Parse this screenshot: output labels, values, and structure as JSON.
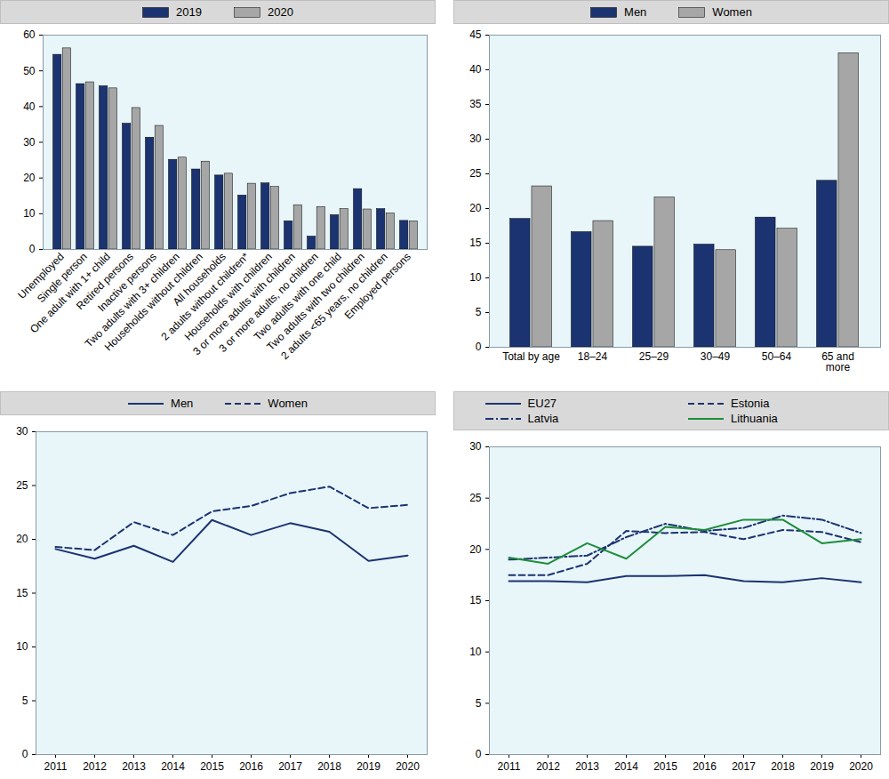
{
  "chart_data": [
    {
      "type": "bar",
      "categories": [
        "Unemployed",
        "Single person",
        "One adult with 1+ child",
        "Retired persons",
        "Inactive persons",
        "Two adults with 3+ children",
        "Households without children",
        "All households",
        "2 adults without children*",
        "Households with children",
        "3 or more adults with children",
        "3 or more adults, no children",
        "Two adults with one child",
        "Two adults with two children",
        "2 adults <65 years, no children",
        "Employed persons"
      ],
      "series": [
        {
          "name": "2019",
          "color": "#1b3370",
          "values": [
            54.5,
            46.3,
            45.7,
            35.2,
            31.3,
            25.1,
            22.4,
            20.7,
            15.1,
            18.5,
            7.9,
            3.6,
            9.6,
            16.9,
            11.3,
            8.0
          ]
        },
        {
          "name": "2020",
          "color": "#a6a6a6",
          "values": [
            56.3,
            46.8,
            45.1,
            39.6,
            34.6,
            25.7,
            24.6,
            21.2,
            18.4,
            17.5,
            12.4,
            11.9,
            11.3,
            11.2,
            10.1,
            7.9
          ]
        }
      ],
      "ylim": [
        0,
        60
      ],
      "yticks": [
        0,
        10,
        20,
        30,
        40,
        50,
        60
      ],
      "grid": false,
      "legend": "top"
    },
    {
      "type": "bar",
      "categories": [
        "Total by age",
        "18–24",
        "25–29",
        "30–49",
        "50–64",
        "65 and more"
      ],
      "series": [
        {
          "name": "Men",
          "color": "#1b3370",
          "values": [
            18.5,
            16.6,
            14.5,
            14.8,
            18.7,
            24.0
          ]
        },
        {
          "name": "Women",
          "color": "#a6a6a6",
          "values": [
            23.2,
            18.2,
            21.6,
            14.0,
            17.1,
            42.4
          ]
        }
      ],
      "ylim": [
        0,
        45
      ],
      "yticks": [
        0,
        5,
        10,
        15,
        20,
        25,
        30,
        35,
        40,
        45
      ],
      "grid": false,
      "legend": "top"
    },
    {
      "type": "line",
      "x": [
        2011,
        2012,
        2013,
        2014,
        2015,
        2016,
        2017,
        2018,
        2019,
        2020
      ],
      "series": [
        {
          "name": "Men",
          "color": "#1b3370",
          "line_style": "solid",
          "values": [
            19.1,
            18.2,
            19.4,
            17.9,
            21.8,
            20.4,
            21.5,
            20.7,
            18.0,
            18.5
          ]
        },
        {
          "name": "Women",
          "color": "#1b3370",
          "line_style": "dashed",
          "values": [
            19.3,
            19.0,
            21.6,
            20.4,
            22.6,
            23.1,
            24.3,
            24.9,
            22.9,
            23.2
          ]
        }
      ],
      "xlim": [
        2010.5,
        2020.5
      ],
      "xticks": [
        2011,
        2012,
        2013,
        2014,
        2015,
        2016,
        2017,
        2018,
        2019,
        2020
      ],
      "ylim": [
        0,
        30
      ],
      "yticks": [
        0,
        5,
        10,
        15,
        20,
        25,
        30
      ],
      "grid": false,
      "legend": "top"
    },
    {
      "type": "line",
      "x": [
        2011,
        2012,
        2013,
        2014,
        2015,
        2016,
        2017,
        2018,
        2019,
        2020
      ],
      "series": [
        {
          "name": "EU27",
          "color": "#1b3370",
          "line_style": "solid",
          "values": [
            16.9,
            16.9,
            16.8,
            17.4,
            17.4,
            17.5,
            16.9,
            16.8,
            17.2,
            16.8
          ]
        },
        {
          "name": "Estonia",
          "color": "#1b3370",
          "line_style": "dashed",
          "values": [
            17.5,
            17.5,
            18.6,
            21.8,
            21.6,
            21.7,
            21.0,
            21.9,
            21.7,
            20.7
          ]
        },
        {
          "name": "Latvia",
          "color": "#1b3370",
          "line_style": "dashdot",
          "values": [
            19.0,
            19.2,
            19.4,
            21.2,
            22.5,
            21.8,
            22.1,
            23.3,
            22.9,
            21.6
          ]
        },
        {
          "name": "Lithuania",
          "color": "#1e8c3a",
          "line_style": "solid",
          "values": [
            19.2,
            18.6,
            20.6,
            19.1,
            22.2,
            21.9,
            22.9,
            22.9,
            20.6,
            21.0
          ]
        }
      ],
      "xlim": [
        2010.5,
        2020.5
      ],
      "xticks": [
        2011,
        2012,
        2013,
        2014,
        2015,
        2016,
        2017,
        2018,
        2019,
        2020
      ],
      "ylim": [
        0,
        30
      ],
      "yticks": [
        0,
        5,
        10,
        15,
        20,
        25,
        30
      ],
      "grid": false,
      "legend": "top"
    }
  ]
}
